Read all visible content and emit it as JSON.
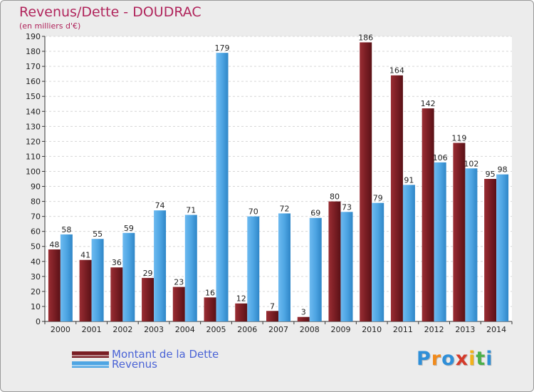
{
  "chart_data": {
    "type": "bar",
    "title": "Revenus/Dette - DOUDRAC",
    "subtitle": "(en milliers d'€)",
    "xlabel": "",
    "ylabel": "",
    "ylim": [
      0,
      190
    ],
    "ytick_step": 10,
    "grid": true,
    "categories": [
      "2000",
      "2001",
      "2002",
      "2003",
      "2004",
      "2005",
      "2006",
      "2007",
      "2008",
      "2009",
      "2010",
      "2011",
      "2012",
      "2013",
      "2014"
    ],
    "series": [
      {
        "name": "Montant de la Dette",
        "color": "#7a1e24",
        "values": [
          48,
          41,
          36,
          29,
          23,
          16,
          12,
          7,
          3,
          80,
          186,
          164,
          142,
          119,
          95
        ]
      },
      {
        "name": "Revenus",
        "color": "#4ea5e3",
        "values": [
          58,
          55,
          59,
          74,
          71,
          179,
          70,
          72,
          69,
          73,
          79,
          91,
          106,
          102,
          98
        ]
      }
    ],
    "legend_position": "bottom-left"
  },
  "legend": {
    "debt_label": "Montant de la Dette",
    "revenue_label": "Revenus",
    "debt_color": "#7a1e24",
    "revenue_color": "#4ea5e3"
  },
  "logo": {
    "letters": [
      "P",
      "r",
      "o",
      "x",
      "i",
      "t",
      "i"
    ],
    "colors": [
      "#2f8fd8",
      "#f08a1c",
      "#2f8fd8",
      "#d43a2a",
      "#f2b21b",
      "#4bb04a",
      "#2f8fd8"
    ]
  }
}
